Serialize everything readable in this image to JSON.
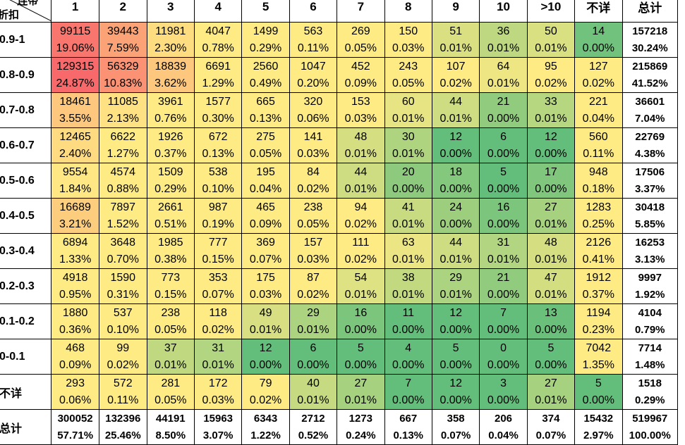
{
  "corner": {
    "top": "连带",
    "bottom": "折扣"
  },
  "columns": [
    "1",
    "2",
    "3",
    "4",
    "5",
    "6",
    "7",
    "8",
    "9",
    "10",
    ">10",
    "不详",
    "总计"
  ],
  "colors": {
    "red": "#f8696b",
    "yellow": "#ffeb84",
    "green": "#63be7b"
  },
  "rows": [
    {
      "label": "0.9-1",
      "cells": [
        [
          "99115",
          "19.06%"
        ],
        [
          "39443",
          "7.59%"
        ],
        [
          "11981",
          "2.30%"
        ],
        [
          "4047",
          "0.78%"
        ],
        [
          "1499",
          "0.29%"
        ],
        [
          "563",
          "0.11%"
        ],
        [
          "269",
          "0.05%"
        ],
        [
          "150",
          "0.03%"
        ],
        [
          "51",
          "0.01%"
        ],
        [
          "36",
          "0.01%"
        ],
        [
          "50",
          "0.01%"
        ],
        [
          "14",
          "0.00%"
        ]
      ],
      "total": [
        "157218",
        "30.24%"
      ]
    },
    {
      "label": "0.8-0.9",
      "cells": [
        [
          "129315",
          "24.87%"
        ],
        [
          "56329",
          "10.83%"
        ],
        [
          "18839",
          "3.62%"
        ],
        [
          "6691",
          "1.29%"
        ],
        [
          "2560",
          "0.49%"
        ],
        [
          "1047",
          "0.20%"
        ],
        [
          "452",
          "0.09%"
        ],
        [
          "243",
          "0.05%"
        ],
        [
          "107",
          "0.02%"
        ],
        [
          "64",
          "0.01%"
        ],
        [
          "95",
          "0.02%"
        ],
        [
          "127",
          "0.02%"
        ]
      ],
      "total": [
        "215869",
        "41.52%"
      ]
    },
    {
      "label": "0.7-0.8",
      "cells": [
        [
          "18461",
          "3.55%"
        ],
        [
          "11085",
          "2.13%"
        ],
        [
          "3961",
          "0.76%"
        ],
        [
          "1577",
          "0.30%"
        ],
        [
          "665",
          "0.13%"
        ],
        [
          "320",
          "0.06%"
        ],
        [
          "153",
          "0.03%"
        ],
        [
          "60",
          "0.01%"
        ],
        [
          "44",
          "0.01%"
        ],
        [
          "21",
          "0.00%"
        ],
        [
          "33",
          "0.01%"
        ],
        [
          "221",
          "0.04%"
        ]
      ],
      "total": [
        "36601",
        "7.04%"
      ]
    },
    {
      "label": "0.6-0.7",
      "cells": [
        [
          "12465",
          "2.40%"
        ],
        [
          "6622",
          "1.27%"
        ],
        [
          "1926",
          "0.37%"
        ],
        [
          "672",
          "0.13%"
        ],
        [
          "275",
          "0.05%"
        ],
        [
          "141",
          "0.03%"
        ],
        [
          "48",
          "0.01%"
        ],
        [
          "30",
          "0.01%"
        ],
        [
          "12",
          "0.00%"
        ],
        [
          "6",
          "0.00%"
        ],
        [
          "12",
          "0.00%"
        ],
        [
          "560",
          "0.11%"
        ]
      ],
      "total": [
        "22769",
        "4.38%"
      ]
    },
    {
      "label": "0.5-0.6",
      "cells": [
        [
          "9554",
          "1.84%"
        ],
        [
          "4574",
          "0.88%"
        ],
        [
          "1509",
          "0.29%"
        ],
        [
          "538",
          "0.10%"
        ],
        [
          "195",
          "0.04%"
        ],
        [
          "84",
          "0.02%"
        ],
        [
          "44",
          "0.01%"
        ],
        [
          "20",
          "0.00%"
        ],
        [
          "18",
          "0.00%"
        ],
        [
          "5",
          "0.00%"
        ],
        [
          "17",
          "0.00%"
        ],
        [
          "948",
          "0.18%"
        ]
      ],
      "total": [
        "17506",
        "3.37%"
      ]
    },
    {
      "label": "0.4-0.5",
      "cells": [
        [
          "16689",
          "3.21%"
        ],
        [
          "7897",
          "1.52%"
        ],
        [
          "2661",
          "0.51%"
        ],
        [
          "987",
          "0.19%"
        ],
        [
          "465",
          "0.09%"
        ],
        [
          "238",
          "0.05%"
        ],
        [
          "94",
          "0.02%"
        ],
        [
          "41",
          "0.01%"
        ],
        [
          "24",
          "0.00%"
        ],
        [
          "16",
          "0.00%"
        ],
        [
          "27",
          "0.01%"
        ],
        [
          "1283",
          "0.25%"
        ]
      ],
      "total": [
        "30418",
        "5.85%"
      ]
    },
    {
      "label": "0.3-0.4",
      "cells": [
        [
          "6894",
          "1.33%"
        ],
        [
          "3648",
          "0.70%"
        ],
        [
          "1985",
          "0.38%"
        ],
        [
          "777",
          "0.15%"
        ],
        [
          "369",
          "0.07%"
        ],
        [
          "157",
          "0.03%"
        ],
        [
          "111",
          "0.02%"
        ],
        [
          "63",
          "0.01%"
        ],
        [
          "44",
          "0.01%"
        ],
        [
          "31",
          "0.01%"
        ],
        [
          "48",
          "0.01%"
        ],
        [
          "2126",
          "0.41%"
        ]
      ],
      "total": [
        "16253",
        "3.13%"
      ]
    },
    {
      "label": "0.2-0.3",
      "cells": [
        [
          "4918",
          "0.95%"
        ],
        [
          "1590",
          "0.31%"
        ],
        [
          "773",
          "0.15%"
        ],
        [
          "353",
          "0.07%"
        ],
        [
          "175",
          "0.03%"
        ],
        [
          "87",
          "0.02%"
        ],
        [
          "54",
          "0.01%"
        ],
        [
          "38",
          "0.01%"
        ],
        [
          "29",
          "0.01%"
        ],
        [
          "21",
          "0.00%"
        ],
        [
          "47",
          "0.01%"
        ],
        [
          "1912",
          "0.37%"
        ]
      ],
      "total": [
        "9997",
        "1.92%"
      ]
    },
    {
      "label": "0.1-0.2",
      "cells": [
        [
          "1880",
          "0.36%"
        ],
        [
          "537",
          "0.10%"
        ],
        [
          "238",
          "0.05%"
        ],
        [
          "118",
          "0.02%"
        ],
        [
          "49",
          "0.01%"
        ],
        [
          "29",
          "0.01%"
        ],
        [
          "16",
          "0.00%"
        ],
        [
          "11",
          "0.00%"
        ],
        [
          "12",
          "0.00%"
        ],
        [
          "7",
          "0.00%"
        ],
        [
          "13",
          "0.00%"
        ],
        [
          "1194",
          "0.23%"
        ]
      ],
      "total": [
        "4104",
        "0.79%"
      ]
    },
    {
      "label": "0-0.1",
      "cells": [
        [
          "468",
          "0.09%"
        ],
        [
          "99",
          "0.02%"
        ],
        [
          "37",
          "0.01%"
        ],
        [
          "31",
          "0.01%"
        ],
        [
          "12",
          "0.00%"
        ],
        [
          "6",
          "0.00%"
        ],
        [
          "5",
          "0.00%"
        ],
        [
          "4",
          "0.00%"
        ],
        [
          "5",
          "0.00%"
        ],
        [
          "0",
          "0.00%"
        ],
        [
          "5",
          "0.00%"
        ],
        [
          "7042",
          "1.35%"
        ]
      ],
      "total": [
        "7714",
        "1.48%"
      ]
    },
    {
      "label": "不详",
      "cells": [
        [
          "293",
          "0.06%"
        ],
        [
          "572",
          "0.11%"
        ],
        [
          "281",
          "0.05%"
        ],
        [
          "172",
          "0.03%"
        ],
        [
          "79",
          "0.02%"
        ],
        [
          "40",
          "0.01%"
        ],
        [
          "27",
          "0.01%"
        ],
        [
          "7",
          "0.00%"
        ],
        [
          "12",
          "0.00%"
        ],
        [
          "3",
          "0.00%"
        ],
        [
          "27",
          "0.01%"
        ],
        [
          "5",
          "0.00%"
        ]
      ],
      "total": [
        "1518",
        "0.29%"
      ]
    }
  ],
  "totals_row": {
    "label": "总计",
    "cells": [
      [
        "300052",
        "57.71%"
      ],
      [
        "132396",
        "25.46%"
      ],
      [
        "44191",
        "8.50%"
      ],
      [
        "15963",
        "3.07%"
      ],
      [
        "6343",
        "1.22%"
      ],
      [
        "2712",
        "0.52%"
      ],
      [
        "1273",
        "0.24%"
      ],
      [
        "667",
        "0.13%"
      ],
      [
        "358",
        "0.07%"
      ],
      [
        "206",
        "0.04%"
      ],
      [
        "374",
        "0.07%"
      ],
      [
        "15432",
        "2.97%"
      ]
    ],
    "total": [
      "519967",
      "100.00%"
    ]
  }
}
